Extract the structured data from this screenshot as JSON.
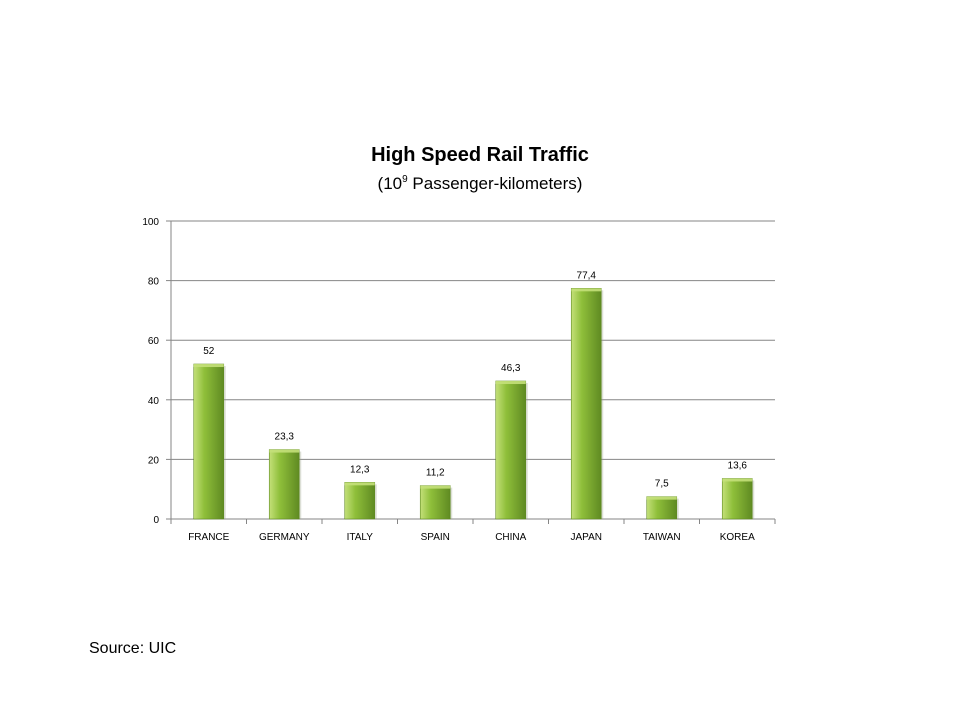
{
  "chart_data": {
    "type": "bar",
    "title": "High Speed Rail Traffic",
    "subtitle": {
      "prefix": "(10",
      "superscript": "9",
      "suffix": " Passenger-kilometers)"
    },
    "categories": [
      "FRANCE",
      "GERMANY",
      "ITALY",
      "SPAIN",
      "CHINA",
      "JAPAN",
      "TAIWAN",
      "KOREA"
    ],
    "values": [
      52,
      23.3,
      12.3,
      11.2,
      46.3,
      77.4,
      7.5,
      13.6
    ],
    "data_labels": [
      "52",
      "23,3",
      "12,3",
      "11,2",
      "46,3",
      "77,4",
      "7,5",
      "13,6"
    ],
    "yticks": [
      0,
      20,
      40,
      60,
      80,
      100
    ],
    "ylim": [
      0,
      100
    ],
    "xlabel": "",
    "ylabel": "",
    "grid": true,
    "legend": "none",
    "bar_color": "#8fbf3a",
    "bar_highlight": "#c4e07a",
    "bar_shadow": "#5f8a22"
  },
  "source": "Source: UIC"
}
